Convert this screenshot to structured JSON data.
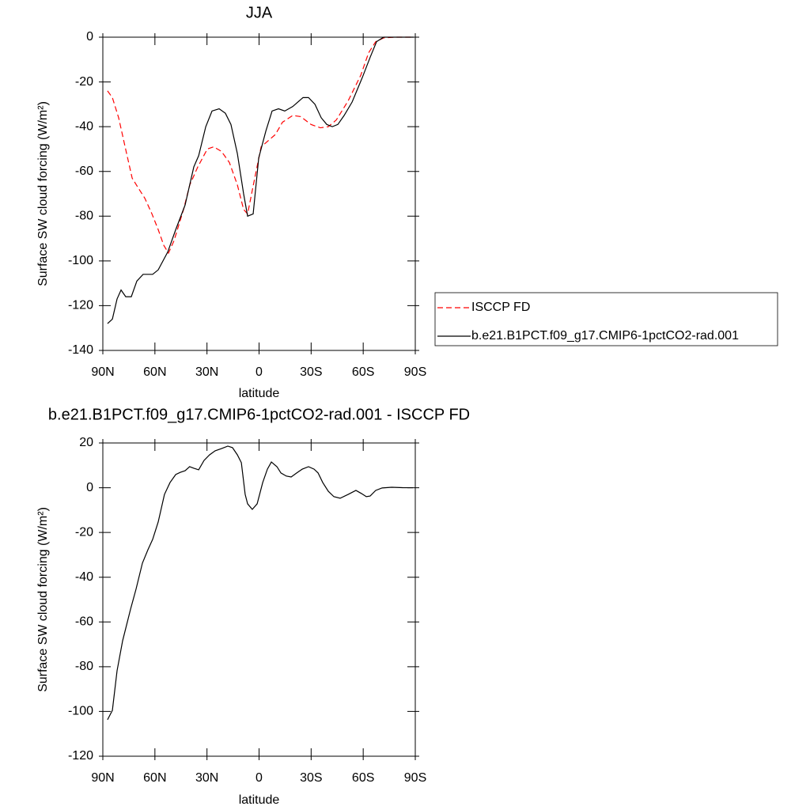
{
  "chart_data": [
    {
      "type": "line",
      "title": "JJA",
      "x_label": "latitude",
      "y_label": "Surface SW cloud forcing (W/m²)",
      "xlim": [
        90,
        -90
      ],
      "xticks": [
        {
          "value": 90,
          "label": "90N"
        },
        {
          "value": 60,
          "label": "60N"
        },
        {
          "value": 30,
          "label": "30N"
        },
        0,
        {
          "value": -30,
          "label": "30S"
        },
        {
          "value": -60,
          "label": "60S"
        },
        {
          "value": -90,
          "label": "90S"
        }
      ],
      "ylim": [
        -140,
        0
      ],
      "yticks": [
        -140,
        -120,
        -100,
        -80,
        -60,
        -40,
        -20,
        0
      ],
      "legend": "right",
      "series": [
        {
          "name": "ISCCP FD",
          "color": "#ff0000",
          "dashed": true,
          "x": [
            87.3,
            84.5,
            80.9,
            76.3,
            73.1,
            69.9,
            65.8,
            61.7,
            58.1,
            54.9,
            52.2,
            49,
            43.5,
            39.9,
            35.3,
            29.8,
            26.2,
            21.7,
            17.1,
            12.5,
            8.9,
            6.6,
            2.5,
            -1.2,
            -5.7,
            -9.4,
            -13.5,
            -19.4,
            -24,
            -29.9,
            -35.3,
            -39.9,
            -44.5,
            -51.3,
            -58.6,
            -63.1,
            -67.2,
            -71.8,
            -78.6,
            -89.1
          ],
          "values": [
            -24,
            -27,
            -36,
            -52,
            -63,
            -67,
            -72,
            -79,
            -86,
            -93,
            -96.5,
            -91,
            -77,
            -66,
            -58,
            -50,
            -49,
            -51,
            -56,
            -66,
            -77,
            -79,
            -63,
            -49,
            -46,
            -43.5,
            -38,
            -35,
            -35.5,
            -39,
            -40.5,
            -40,
            -37,
            -28.5,
            -17,
            -7,
            -2,
            -0.3,
            0,
            0
          ]
        },
        {
          "name": "b.e21.B1PCT.f09_g17.CMIP6-1pctCO2-rad.001",
          "color": "#000000",
          "dashed": false,
          "x": [
            87.3,
            84.5,
            81.8,
            79.5,
            76.8,
            73.6,
            70.4,
            66.8,
            61.3,
            58.1,
            52.6,
            48,
            42.6,
            37.6,
            34.8,
            30.7,
            27.1,
            23,
            19.4,
            16.2,
            12.5,
            8.9,
            6.6,
            3.4,
            0.2,
            -3.9,
            -7.5,
            -11.2,
            -14.8,
            -19.4,
            -25.3,
            -28.5,
            -32.2,
            -35.8,
            -39,
            -42.2,
            -45.4,
            -49,
            -53.6,
            -59.5,
            -64,
            -67.7,
            -71.8,
            -78.6,
            -89.1
          ],
          "values": [
            -128,
            -126,
            -117,
            -113,
            -116,
            -116,
            -109,
            -106,
            -106,
            -104,
            -96,
            -86,
            -75,
            -58,
            -53,
            -40,
            -33,
            -32,
            -34,
            -39,
            -52,
            -70,
            -80,
            -79,
            -54,
            -42,
            -33,
            -32,
            -33,
            -31,
            -27,
            -27,
            -30,
            -36,
            -39,
            -40,
            -39,
            -35,
            -29,
            -18,
            -9,
            -2,
            0,
            0,
            0
          ]
        }
      ]
    },
    {
      "type": "line",
      "title": "b.e21.B1PCT.f09_g17.CMIP6-1pctCO2-rad.001 - ISCCP FD",
      "x_label": "latitude",
      "y_label": "Surface SW cloud forcing (W/m²)",
      "xlim": [
        90,
        -90
      ],
      "xticks": [
        {
          "value": 90,
          "label": "90N"
        },
        {
          "value": 60,
          "label": "60N"
        },
        {
          "value": 30,
          "label": "30N"
        },
        0,
        {
          "value": -30,
          "label": "30S"
        },
        {
          "value": -60,
          "label": "60S"
        },
        {
          "value": -90,
          "label": "90S"
        }
      ],
      "ylim": [
        -120,
        20
      ],
      "yticks": [
        -120,
        -100,
        -80,
        -60,
        -40,
        -20,
        0,
        20
      ],
      "series": [
        {
          "color": "#000000",
          "dashed": false,
          "x": [
            87.3,
            84.5,
            81.8,
            78.6,
            74,
            70.9,
            67.2,
            64,
            61.3,
            58.1,
            54.5,
            51.3,
            48,
            45.3,
            42.6,
            40,
            37.6,
            34.8,
            31.7,
            28.5,
            25.3,
            21.6,
            18,
            15.3,
            12.5,
            10.2,
            8,
            6.6,
            3.9,
            1.1,
            -2.1,
            -4.8,
            -7.1,
            -10.3,
            -12.6,
            -15.7,
            -18.5,
            -21.7,
            -24.9,
            -28.5,
            -31.7,
            -34,
            -36.7,
            -39.9,
            -43.1,
            -46.7,
            -51.3,
            -55.8,
            -59,
            -61.8,
            -64,
            -67.2,
            -70.9,
            -76.4,
            -83.2,
            -88.7
          ],
          "values": [
            -103.7,
            -99.5,
            -81.8,
            -68.4,
            -54.2,
            -45.4,
            -33.7,
            -27.7,
            -23.1,
            -15.3,
            -3,
            2.3,
            5.9,
            6.9,
            7.6,
            9.4,
            8.7,
            8,
            12.2,
            14.7,
            16.5,
            17.5,
            18.6,
            17.9,
            14.7,
            11.2,
            -3,
            -7.2,
            -9.7,
            -7.2,
            2.3,
            8.3,
            11.5,
            9.4,
            6.6,
            5.2,
            4.8,
            6.6,
            8.3,
            9.4,
            8.3,
            6.6,
            2.3,
            -1.6,
            -4,
            -4.7,
            -3,
            -1.2,
            -2.6,
            -4,
            -3.7,
            -1.2,
            -0.1,
            0.2,
            0,
            0
          ]
        }
      ]
    }
  ]
}
